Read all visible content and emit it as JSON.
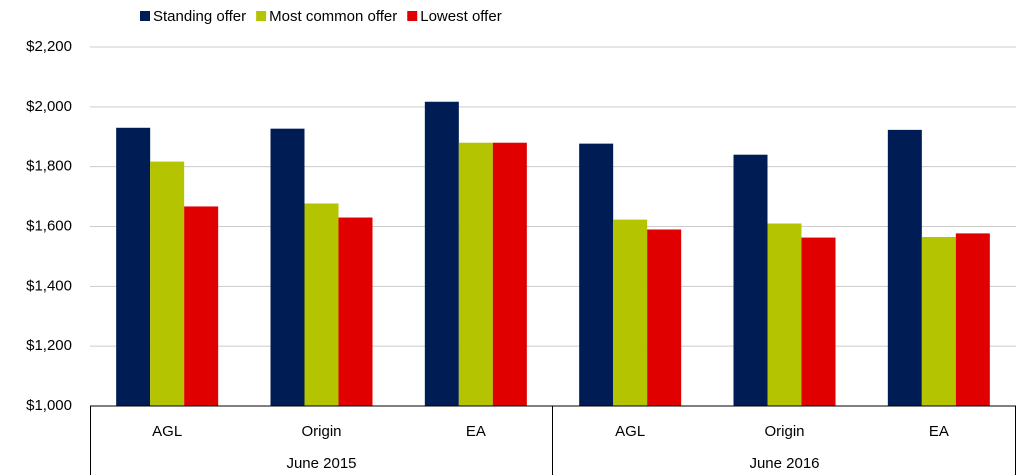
{
  "chart_data": {
    "type": "bar",
    "groups": [
      {
        "label": "June 2015",
        "categories": [
          "AGL",
          "Origin",
          "EA"
        ]
      },
      {
        "label": "June 2016",
        "categories": [
          "AGL",
          "Origin",
          "EA"
        ]
      }
    ],
    "series": [
      {
        "name": "Standing offer",
        "color": "#001c54",
        "values": [
          1930,
          1927,
          2017,
          1877,
          1840,
          1923
        ]
      },
      {
        "name": "Most common offer",
        "color": "#b5c400",
        "values": [
          1817,
          1677,
          1880,
          1623,
          1610,
          1565
        ]
      },
      {
        "name": "Lowest offer",
        "color": "#e00000",
        "values": [
          1667,
          1630,
          1880,
          1590,
          1563,
          1577
        ]
      }
    ],
    "ylim": [
      1000,
      2200
    ],
    "yticks": [
      {
        "value": 1000,
        "label": "$1,000"
      },
      {
        "value": 1200,
        "label": "$1,200"
      },
      {
        "value": 1400,
        "label": "$1,400"
      },
      {
        "value": 1600,
        "label": "$1,600"
      },
      {
        "value": 1800,
        "label": "$1,800"
      },
      {
        "value": 2000,
        "label": "$2,000"
      },
      {
        "value": 2200,
        "label": "$2,200"
      }
    ],
    "grid": true,
    "legend": "top"
  }
}
